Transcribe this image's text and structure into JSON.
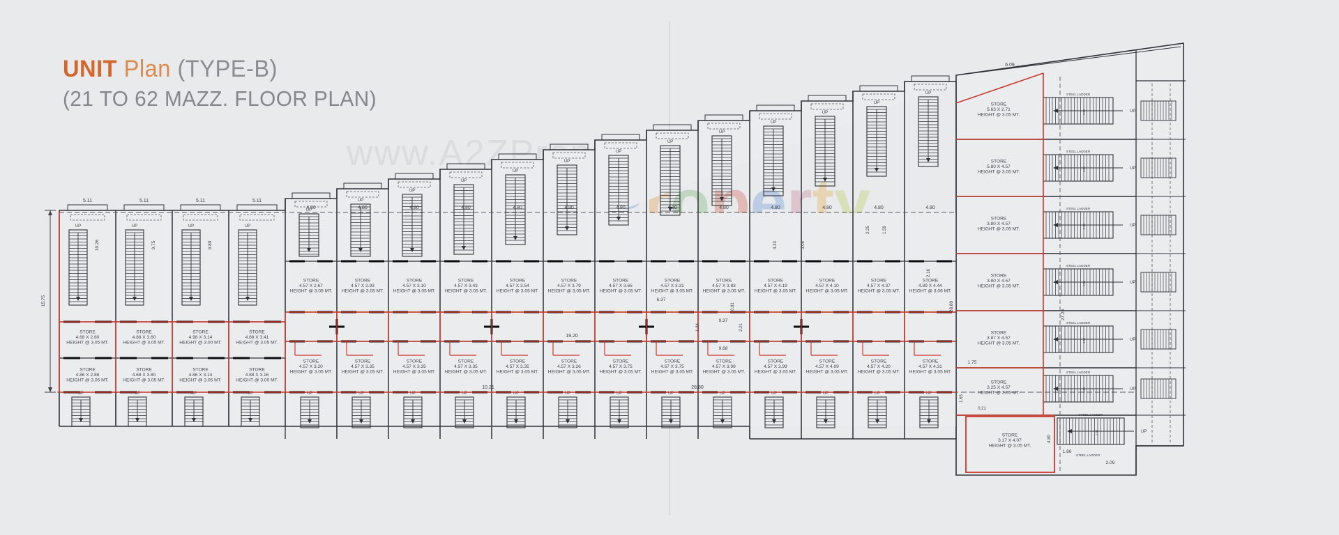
{
  "title": {
    "unit": "UNIT",
    "plan": "Plan",
    "type": "(TYPE-B)",
    "line2": "(21 TO 62 MAZZ. FLOOR PLAN)"
  },
  "watermarks": {
    "url": "www.A2ZProperty.in",
    "brand": [
      {
        "ch": "A",
        "c": "#d2574a"
      },
      {
        "ch": "2",
        "c": "#57a05a",
        "digit": true
      },
      {
        "ch": "Z",
        "c": "#d2574a"
      },
      {
        "ch": "P",
        "c": "#5f8fd4",
        "space": true
      },
      {
        "ch": "r",
        "c": "#e0973f"
      },
      {
        "ch": "o",
        "c": "#6fae68"
      },
      {
        "ch": "p",
        "c": "#d2574a"
      },
      {
        "ch": "e",
        "c": "#5f8fd4"
      },
      {
        "ch": "r",
        "c": "#c8788f"
      },
      {
        "ch": "t",
        "c": "#e0a93f"
      },
      {
        "ch": "y",
        "c": "#b9c94f"
      }
    ]
  },
  "colors": {
    "wall": "#2f3236",
    "red": "#cc372a",
    "dash": "#55585c",
    "dim": "#3b3e42",
    "label": "#44474b",
    "fold": "#d8d9db",
    "fill": "#ebecee"
  },
  "labels": {
    "store": "STORE",
    "height_prefix": "HEIGHT @",
    "height_unit": "MT.",
    "up": "UP",
    "steel_ladder": "STEEL LADDER",
    "stair_dim": "1.50"
  },
  "left_bays": [
    {
      "top": {
        "size": "4.68 X 2.80",
        "ht": "3.05"
      },
      "bottom": {
        "size": "4.86 X 2.86",
        "ht": "3.05"
      },
      "w": "5.11",
      "v": "10.26"
    },
    {
      "top": {
        "size": "4.88 X 3.60",
        "ht": "3.05"
      },
      "bottom": {
        "size": "4.68 X 3.80",
        "ht": "3.05"
      },
      "w": "5.11",
      "v": "9.75"
    },
    {
      "top": {
        "size": "4.98 X 3.14",
        "ht": "3.00"
      },
      "bottom": {
        "size": "4.86 X 3.14",
        "ht": "3.05"
      },
      "w": "5.11",
      "v": "9.80"
    },
    {
      "top": {
        "size": "4.88 X 3.41",
        "ht": "3.05"
      },
      "bottom": {
        "size": "4.88 X 3.16",
        "ht": "3.00"
      },
      "w": "5.11",
      "v": ""
    }
  ],
  "mid_bays": [
    {
      "upper": {
        "size": "4.57 X 2.67",
        "ht": "3.05"
      },
      "lower": {
        "size": "4.57 X 3.20",
        "ht": "3.05"
      },
      "w": "4.80"
    },
    {
      "upper": {
        "size": "4.57 X 2.93",
        "ht": "3.05"
      },
      "lower": {
        "size": "4.57 X 3.35",
        "ht": "3.05"
      },
      "w": "4.80"
    },
    {
      "upper": {
        "size": "4.57 X 3.10",
        "ht": "3.05"
      },
      "lower": {
        "size": "4.57 X 3.35",
        "ht": "3.05"
      },
      "w": "4.80"
    },
    {
      "upper": {
        "size": "4.57 X 3.43",
        "ht": "3.05"
      },
      "lower": {
        "size": "4.57 X 3.35",
        "ht": "3.05"
      },
      "w": "4.80"
    },
    {
      "upper": {
        "size": "4.57 X 3.54",
        "ht": "3.05"
      },
      "lower": {
        "size": "4.57 X 3.35",
        "ht": "3.05"
      },
      "w": "4.80"
    },
    {
      "upper": {
        "size": "4.57 X 3.79",
        "ht": "3.05"
      },
      "lower": {
        "size": "4.57 X 3.26",
        "ht": "3.05"
      },
      "w": "4.80"
    },
    {
      "upper": {
        "size": "4.57 X 3.65",
        "ht": "3.05"
      },
      "lower": {
        "size": "4.57 X 3.75",
        "ht": "3.05"
      },
      "w": "4.80"
    },
    {
      "upper": {
        "size": "4.57 X 3.31",
        "ht": "3.05"
      },
      "lower": {
        "size": "4.57 X 3.75",
        "ht": "3.05"
      },
      "w": "4.80"
    },
    {
      "upper": {
        "size": "4.57 X 3.83",
        "ht": "3.05"
      },
      "lower": {
        "size": "4.57 X 3.99",
        "ht": "3.05"
      },
      "w": "4.80"
    },
    {
      "upper": {
        "size": "4.57 X 4.19",
        "ht": "3.05"
      },
      "lower": {
        "size": "4.57 X 3.99",
        "ht": "3.05"
      },
      "w": "4.80"
    },
    {
      "upper": {
        "size": "4.57 X 4.10",
        "ht": "3.05"
      },
      "lower": {
        "size": "4.57 X 4.09",
        "ht": "3.05"
      },
      "w": "4.80"
    },
    {
      "upper": {
        "size": "4.57 X 4.37",
        "ht": "3.05"
      },
      "lower": {
        "size": "4.57 X 4.20",
        "ht": "3.05"
      },
      "w": "4.80"
    },
    {
      "upper": {
        "size": "4.89 X 4.44",
        "ht": "3.06"
      },
      "lower": {
        "size": "4.57 X 4.31",
        "ht": "3.05"
      },
      "w": "4.80"
    }
  ],
  "tower_floors": [
    {
      "size": "5.63 X 2.71",
      "ht": "3.05"
    },
    {
      "size": "5.80 X 4.57",
      "ht": "3.05"
    },
    {
      "size": "3.80 X 4.57",
      "ht": "3.05"
    },
    {
      "size": "3.80 X 4.57",
      "ht": "3.05"
    },
    {
      "size": "3.87 X 4.57",
      "ht": "3.05"
    },
    {
      "size": "3.25 X 4.57",
      "ht": "3.05"
    }
  ],
  "tower_bottom_store": {
    "size": "3.17 X 4.07",
    "ht": "3.05"
  },
  "dims": {
    "corridor": "19.20",
    "datum_left": "10.21",
    "datum_right": "28.80",
    "roof": "6.09",
    "tower_v1": "28.80",
    "tower_v2": "27.26",
    "left_v": "15.75",
    "b1": "9.37",
    "b2": "9.68",
    "b3": "1.34",
    "b4": "2.21",
    "b5": "3.33",
    "b6": "3.08",
    "b7": "2.25",
    "b8": "1.59",
    "b9": "6.37",
    "b10": "2.16",
    "b11": "0.81",
    "br1": "1.75",
    "br2": "1.86",
    "br3": "2.09",
    "br4": "4.80",
    "br5": "1.65",
    "br6": "0.21"
  }
}
